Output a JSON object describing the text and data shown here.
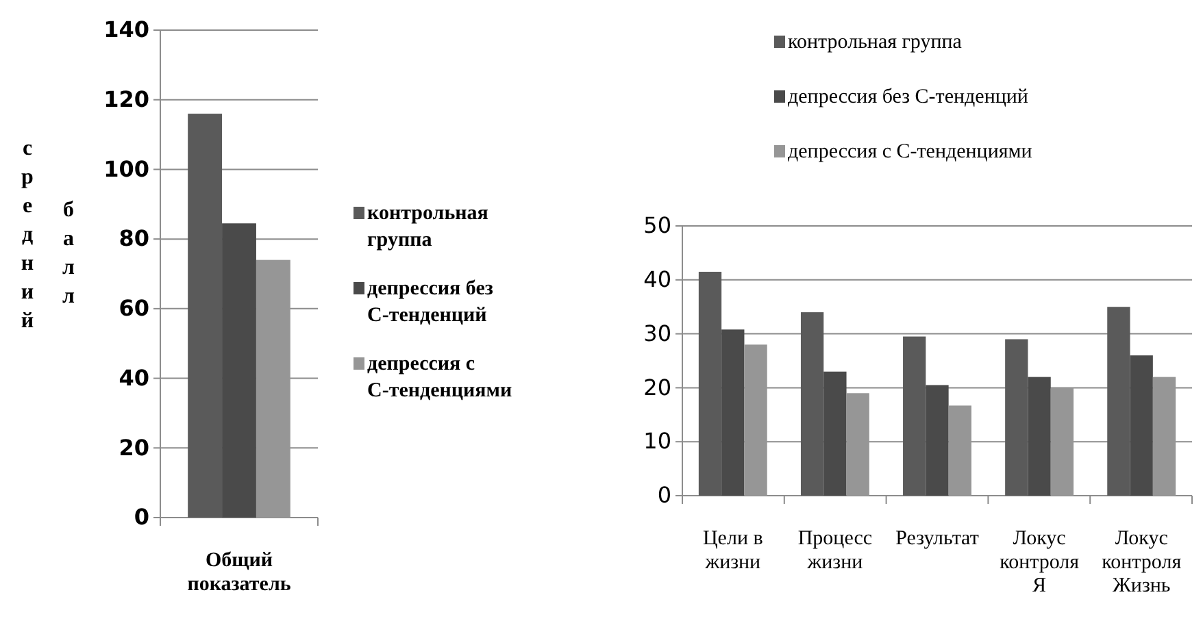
{
  "chart_data": [
    {
      "type": "bar",
      "ylabel": "средний балл",
      "categories": [
        "Общий показатель"
      ],
      "series": [
        {
          "name": "контрольная группа",
          "color": "#5a5a5a",
          "values": [
            116
          ]
        },
        {
          "name": "депрессия без С-тенденций",
          "color": "#4a4a4a",
          "values": [
            84.5
          ]
        },
        {
          "name": "депрессия с С-тенденциями",
          "color": "#969696",
          "values": [
            74
          ]
        }
      ],
      "ylim": [
        0,
        140
      ],
      "yticks": [
        0,
        20,
        40,
        60,
        80,
        100,
        120,
        140
      ],
      "grid": "y",
      "legend": "right"
    },
    {
      "type": "bar",
      "categories": [
        "Цели в жизни",
        "Процесс жизни",
        "Результат",
        "Локус контроля Я",
        "Локус контроля Жизнь"
      ],
      "series": [
        {
          "name": "контрольная группа",
          "color": "#5a5a5a",
          "values": [
            41.5,
            34,
            29.5,
            29,
            35
          ]
        },
        {
          "name": "депрессия без С-тенденций",
          "color": "#4a4a4a",
          "values": [
            30.8,
            23,
            20.5,
            22,
            26
          ]
        },
        {
          "name": "депрессия с С-тенденциями",
          "color": "#969696",
          "values": [
            28,
            19,
            16.7,
            20,
            22
          ]
        }
      ],
      "ylim": [
        0,
        50
      ],
      "yticks": [
        0,
        10,
        20,
        30,
        40,
        50
      ],
      "grid": "y",
      "legend": "top"
    }
  ]
}
